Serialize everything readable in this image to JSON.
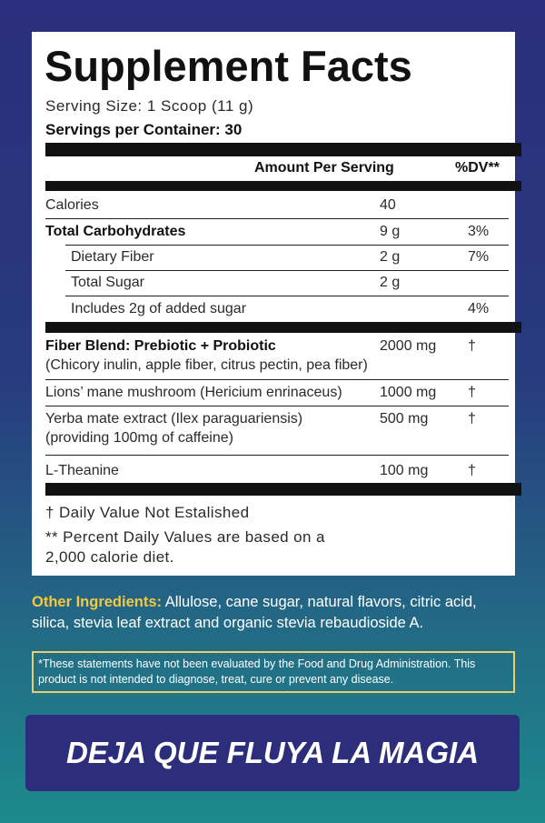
{
  "header": {
    "title": "Supplement Facts",
    "serving_size": "Serving Size: 1 Scoop (11 g)",
    "servings_per_container": "Servings per Container: 30"
  },
  "table": {
    "columns": [
      "Amount Per Serving",
      "%DV**"
    ],
    "rows": [
      {
        "name": "Calories",
        "amount": "40"
      },
      {
        "name": "Total Carbohydrates",
        "amount": "9 g",
        "dv": "3%"
      },
      {
        "name": "Dietary Fiber",
        "amount": "2 g",
        "dv": "7%"
      },
      {
        "name": "Total Sugar",
        "amount": "2 g"
      },
      {
        "name": "Includes 2g of added sugar",
        "dv": "4%"
      },
      {
        "name": "Fiber Blend: Prebiotic + Probiotic",
        "detail": "(Chicory inulin, apple fiber, citrus pectin, pea fiber)",
        "amount": "2000 mg",
        "dv": "†"
      },
      {
        "name": "Lions’ mane mushroom (Hericium enrinaceus)",
        "amount": "1000 mg",
        "dv": "†"
      },
      {
        "name": "Yerba mate extract (Ilex paraguariensis)",
        "detail": "(providing 100mg of caffeine)",
        "amount": "500 mg",
        "dv": "†"
      },
      {
        "name": "L-Theanine",
        "amount": "100 mg",
        "dv": "†"
      }
    ]
  },
  "footnotes": [
    "† Daily Value Not Estalished",
    "** Percent Daily Values are based on a 2,000 calorie diet."
  ],
  "other_ingredients": {
    "label": "Other Ingredients:",
    "text": "Allulose, cane sugar, natural flavors, citric acid, silica, stevia leaf extract and organic stevia rebaudioside A."
  },
  "disclaimer": "*These statements have not been evaluated by the Food and Drug Administration. This product is not intended to diagnose, treat, cure or prevent any disease.",
  "cta": "DEJA QUE FLUYA LA MAGIA"
}
